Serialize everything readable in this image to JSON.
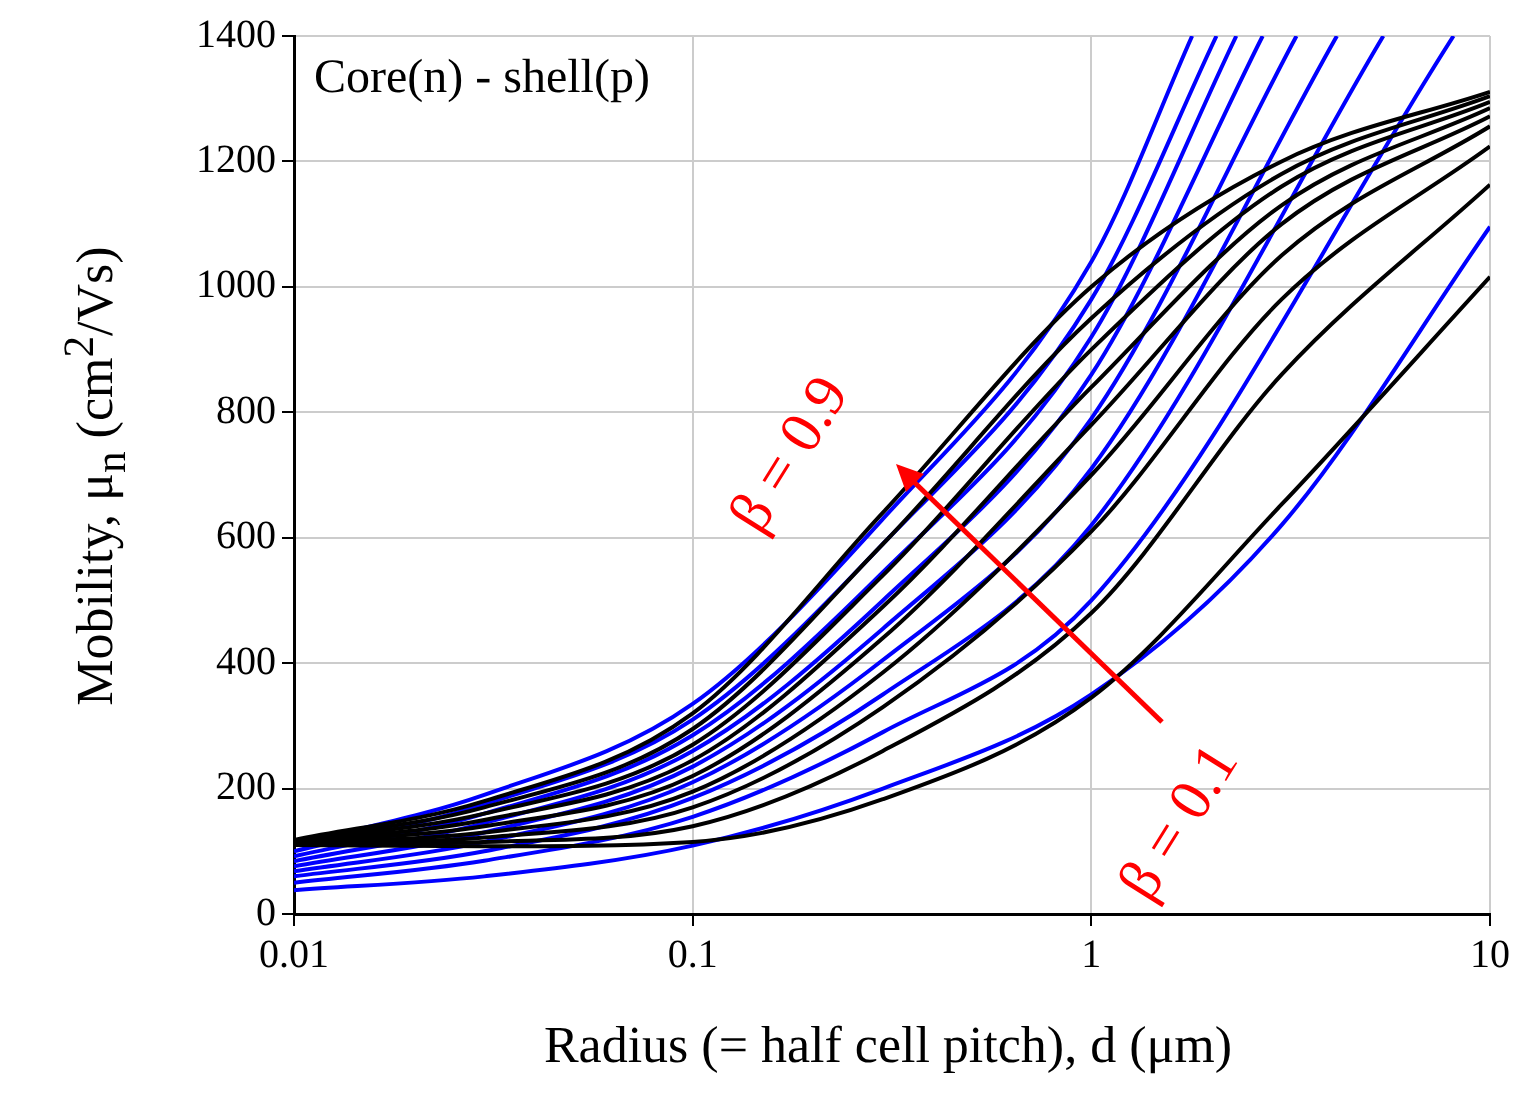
{
  "chart_data": {
    "type": "line",
    "xlabel": "Radius (= half cell pitch), d (μm)",
    "ylabel": "Mobility, μ$_{n}$ (cm$^{2}$/Vs)",
    "log": "x",
    "xlim": [
      0.01,
      10
    ],
    "xticks": [
      0.01,
      0.1,
      1,
      10
    ],
    "ylim": [
      0,
      1400
    ],
    "yticks": [
      0,
      200,
      400,
      600,
      800,
      1000,
      1200,
      1400
    ],
    "grid": true,
    "marker": "none",
    "line_style": "solid",
    "annotations": [
      "Core(n) - shell(p)",
      "β = 0.9",
      {
        "text": "β = 0.1",
        "x": 1,
        "y": 345
      }
    ],
    "series": [
      {
        "color": "#000000",
        "x": [
          0.01,
          0.03,
          0.1,
          0.3,
          1,
          3,
          10
        ],
        "values": [
          118,
          180,
          320,
          640,
          1000,
          1200,
          1311
        ]
      },
      {
        "color": "#000000",
        "x": [
          0.01,
          0.03,
          0.1,
          0.3,
          1,
          3,
          10
        ],
        "values": [
          117,
          170,
          295,
          590,
          950,
          1180,
          1304
        ]
      },
      {
        "color": "#000000",
        "x": [
          0.01,
          0.03,
          0.1,
          0.3,
          1,
          3,
          10
        ],
        "values": [
          116,
          160,
          270,
          540,
          900,
          1160,
          1295
        ]
      },
      {
        "color": "#000000",
        "x": [
          0.01,
          0.03,
          0.1,
          0.3,
          1,
          3,
          10
        ],
        "values": [
          115,
          150,
          245,
          490,
          840,
          1130,
          1285
        ]
      },
      {
        "color": "#000000",
        "x": [
          0.01,
          0.03,
          0.1,
          0.3,
          1,
          3,
          10
        ],
        "values": [
          114,
          140,
          220,
          440,
          780,
          1100,
          1272
        ]
      },
      {
        "color": "#000000",
        "x": [
          0.01,
          0.03,
          0.1,
          0.3,
          1,
          3,
          10
        ],
        "values": [
          113,
          130,
          195,
          385,
          700,
          1050,
          1256
        ]
      },
      {
        "color": "#000000",
        "x": [
          0.01,
          0.03,
          0.1,
          0.3,
          1,
          3,
          10
        ],
        "values": [
          112,
          122,
          170,
          330,
          610,
          980,
          1224
        ]
      },
      {
        "color": "#000000",
        "x": [
          0.01,
          0.03,
          0.1,
          0.3,
          1,
          3,
          10
        ],
        "values": [
          111,
          115,
          140,
          260,
          480,
          860,
          1163
        ]
      },
      {
        "color": "#000000",
        "x": [
          0.01,
          0.03,
          0.1,
          0.3,
          1,
          3,
          10
        ],
        "values": [
          110,
          108,
          115,
          183,
          345,
          653,
          1016
        ]
      },
      {
        "color": "#0000ff",
        "x": [
          0.01,
          0.03,
          0.1,
          0.3,
          1,
          1.79
        ],
        "values": [
          110,
          190,
          335,
          630,
          1040,
          1400
        ]
      },
      {
        "color": "#0000ff",
        "x": [
          0.01,
          0.03,
          0.1,
          0.3,
          1,
          2.06
        ],
        "values": [
          100,
          175,
          310,
          590,
          980,
          1400
        ]
      },
      {
        "color": "#0000ff",
        "x": [
          0.01,
          0.03,
          0.1,
          0.3,
          1,
          2.31
        ],
        "values": [
          92,
          160,
          285,
          545,
          920,
          1400
        ]
      },
      {
        "color": "#0000ff",
        "x": [
          0.01,
          0.03,
          0.1,
          0.3,
          1,
          2.69
        ],
        "values": [
          84,
          145,
          260,
          500,
          860,
          1400
        ]
      },
      {
        "color": "#0000ff",
        "x": [
          0.01,
          0.03,
          0.1,
          0.3,
          1,
          3.27
        ],
        "values": [
          76,
          130,
          235,
          455,
          790,
          1400
        ]
      },
      {
        "color": "#0000ff",
        "x": [
          0.01,
          0.03,
          0.1,
          0.3,
          1,
          4.13
        ],
        "values": [
          68,
          115,
          210,
          405,
          710,
          1400
        ]
      },
      {
        "color": "#0000ff",
        "x": [
          0.01,
          0.03,
          0.1,
          0.3,
          1,
          5.4
        ],
        "values": [
          60,
          100,
          185,
          350,
          620,
          1400
        ]
      },
      {
        "color": "#0000ff",
        "x": [
          0.01,
          0.03,
          0.1,
          0.3,
          1,
          8.1
        ],
        "values": [
          50,
          85,
          155,
          290,
          500,
          1400
        ]
      },
      {
        "color": "#0000ff",
        "x": [
          0.01,
          0.03,
          0.1,
          0.3,
          1,
          3,
          10
        ],
        "values": [
          38,
          60,
          109,
          200,
          350,
          620,
          1096
        ]
      }
    ]
  }
}
